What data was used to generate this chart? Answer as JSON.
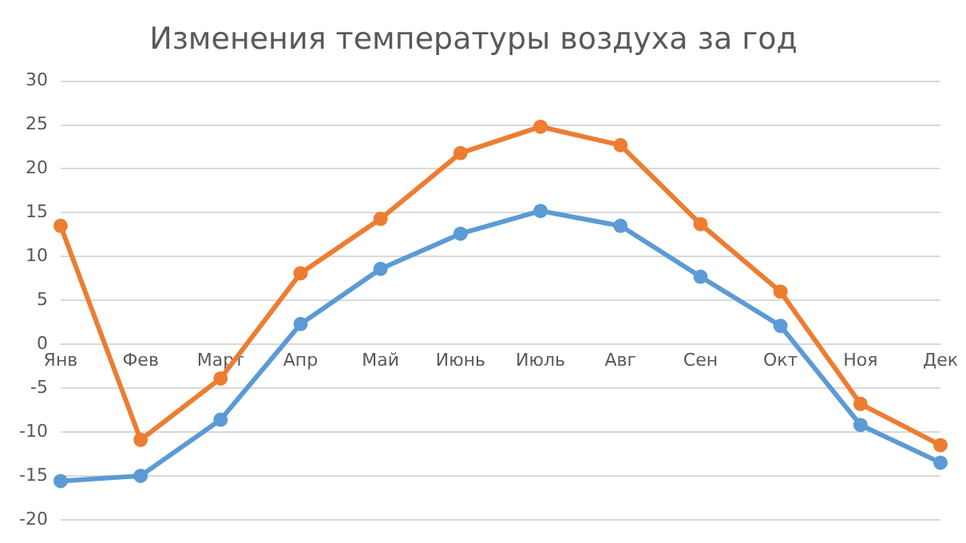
{
  "chart_data": {
    "type": "line",
    "title": "Изменения температуры воздуха за год",
    "categories": [
      "Янв",
      "Фев",
      "Март",
      "Апр",
      "Май",
      "Июнь",
      "Июль",
      "Авг",
      "Сен",
      "Окт",
      "Ноя",
      "Дек"
    ],
    "series": [
      {
        "color": "#5b9bd5",
        "values": [
          -15.6,
          -15,
          -8.6,
          2.3,
          8.6,
          12.6,
          15.2,
          13.5,
          7.7,
          2.1,
          -9.2,
          -13.5
        ]
      },
      {
        "color": "#ed7d31",
        "values": [
          13.5,
          -10.9,
          -3.9,
          8.1,
          14.3,
          21.8,
          24.8,
          22.7,
          13.7,
          6,
          -6.8,
          -11.5
        ]
      }
    ],
    "ylim": [
      -20,
      30
    ],
    "yticks": [
      -20,
      -15,
      -10,
      -5,
      0,
      5,
      10,
      15,
      20,
      25,
      30
    ],
    "grid": "y",
    "legend": false,
    "marker": "circle",
    "line_style": "solid"
  }
}
